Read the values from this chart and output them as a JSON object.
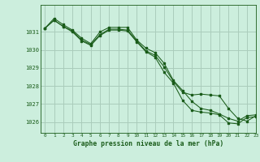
{
  "title": "Graphe pression niveau de la mer (hPa)",
  "background_color": "#cceedd",
  "grid_color": "#aaccbb",
  "line_color": "#1a5c1a",
  "marker_color": "#1a5c1a",
  "xlim": [
    -0.5,
    23
  ],
  "ylim": [
    1025.4,
    1032.5
  ],
  "yticks": [
    1026,
    1027,
    1028,
    1029,
    1030,
    1031
  ],
  "xticks": [
    0,
    1,
    2,
    3,
    4,
    5,
    6,
    7,
    8,
    9,
    10,
    11,
    12,
    13,
    14,
    15,
    16,
    17,
    18,
    19,
    20,
    21,
    22,
    23
  ],
  "series1": [
    1031.2,
    1031.75,
    1031.4,
    1031.1,
    1030.65,
    1030.35,
    1031.0,
    1031.25,
    1031.25,
    1031.25,
    1030.55,
    1030.1,
    1029.85,
    1029.25,
    1028.3,
    1027.75,
    1027.15,
    1026.75,
    1026.65,
    1026.45,
    1026.2,
    1026.05,
    1026.35,
    1026.4
  ],
  "series2": [
    1031.2,
    1031.65,
    1031.3,
    1031.05,
    1030.55,
    1030.3,
    1030.85,
    1031.15,
    1031.15,
    1031.1,
    1030.5,
    1029.95,
    1029.7,
    1029.05,
    1028.25,
    1027.65,
    1027.5,
    1027.55,
    1027.5,
    1027.45,
    1026.75,
    1026.2,
    1026.05,
    1026.35
  ],
  "series3": [
    1031.2,
    1031.65,
    1031.3,
    1031.0,
    1030.5,
    1030.25,
    1030.8,
    1031.1,
    1031.1,
    1031.05,
    1030.45,
    1029.9,
    1029.6,
    1028.75,
    1028.15,
    1027.2,
    1026.65,
    1026.55,
    1026.5,
    1026.4,
    1025.95,
    1025.9,
    1026.25,
    1026.3
  ]
}
